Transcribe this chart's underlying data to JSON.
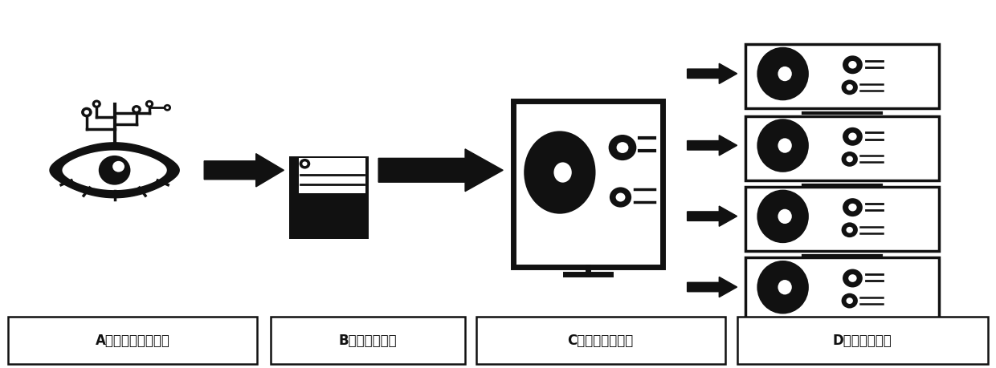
{
  "fig_width": 12.4,
  "fig_height": 4.59,
  "bg_color": "#ffffff",
  "labels": [
    "A工业视觉识别系统",
    "B数据转换模块",
    "C上位机控制系统",
    "D控制执行系统"
  ],
  "label_fontsize": 12,
  "icon_color": "#111111"
}
